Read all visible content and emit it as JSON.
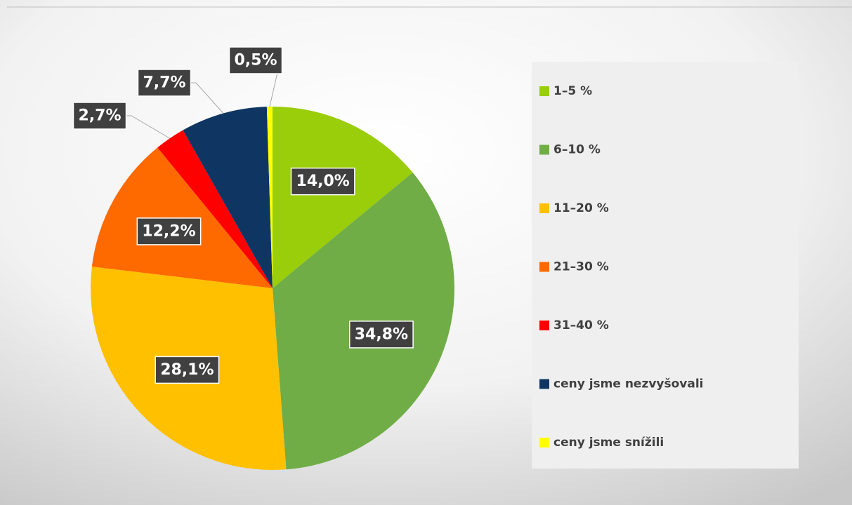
{
  "chart_data": {
    "type": "pie",
    "categories": [
      "1–5 %",
      "6–10 %",
      "11–20 %",
      "21–30 %",
      "31–40 %",
      "ceny jsme nezvyšovali",
      "ceny jsme snížili"
    ],
    "values": [
      14.0,
      34.8,
      28.1,
      12.2,
      2.7,
      7.7,
      0.5
    ],
    "value_labels": [
      "14,0%",
      "34,8%",
      "28,1%",
      "12,2%",
      "2,7%",
      "7,7%",
      "0,5%"
    ],
    "colors": [
      "#9acd0a",
      "#70ad47",
      "#ffc000",
      "#ff6a00",
      "#ff0000",
      "#0f3563",
      "#ffff00"
    ],
    "legend": "right"
  }
}
